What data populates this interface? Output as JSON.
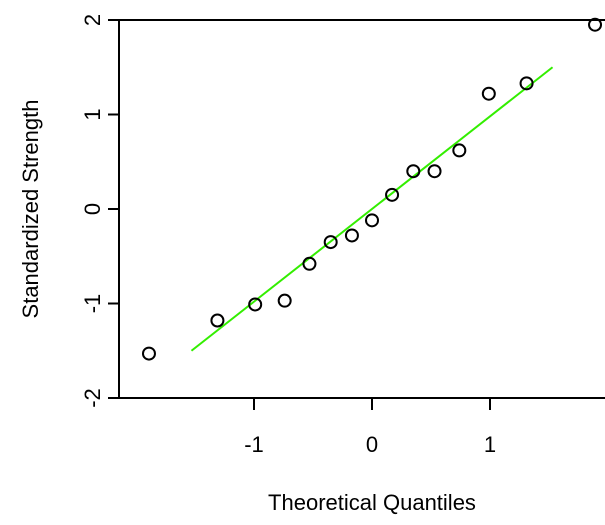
{
  "chart_data": {
    "type": "scatter",
    "title": "",
    "xlabel": "Theoretical Quantiles",
    "ylabel": "Standardized Strength",
    "xlim": [
      -1.9,
      1.9
    ],
    "ylim": [
      -2,
      2
    ],
    "x_ticks": [
      -1,
      0,
      1
    ],
    "y_ticks": [
      -2,
      -1,
      0,
      1,
      2
    ],
    "x_tick_labels": [
      "-1",
      "0",
      "1"
    ],
    "y_tick_labels": [
      "-2",
      "-1",
      "0",
      "1",
      "2"
    ],
    "grid": false,
    "points": [
      {
        "x": -1.89,
        "y": -1.53
      },
      {
        "x": -1.31,
        "y": -1.18
      },
      {
        "x": -0.99,
        "y": -1.01
      },
      {
        "x": -0.74,
        "y": -0.97
      },
      {
        "x": -0.53,
        "y": -0.58
      },
      {
        "x": -0.35,
        "y": -0.35
      },
      {
        "x": -0.17,
        "y": -0.28
      },
      {
        "x": 0.0,
        "y": -0.12
      },
      {
        "x": 0.17,
        "y": 0.15
      },
      {
        "x": 0.35,
        "y": 0.4
      },
      {
        "x": 0.53,
        "y": 0.4
      },
      {
        "x": 0.74,
        "y": 0.62
      },
      {
        "x": 0.99,
        "y": 1.22
      },
      {
        "x": 1.31,
        "y": 1.33
      },
      {
        "x": 1.89,
        "y": 1.95
      }
    ],
    "reference_line": {
      "x": [
        -1.53,
        1.53
      ],
      "y": [
        -1.5,
        1.5
      ],
      "color": "#33ee00"
    },
    "point_color": "#000000"
  }
}
